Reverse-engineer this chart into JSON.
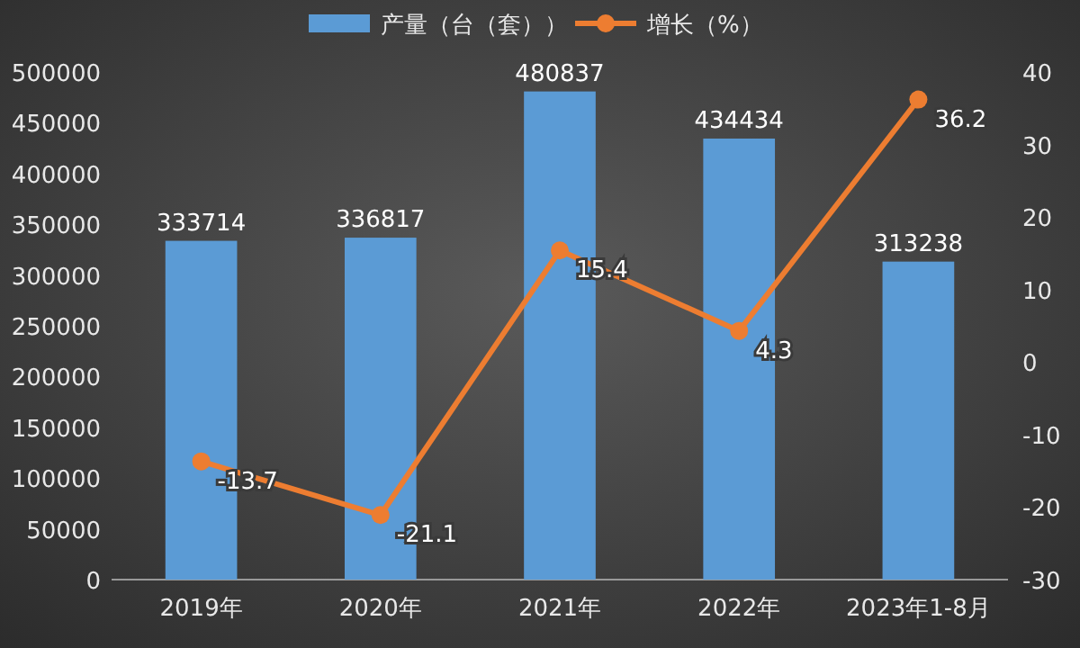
{
  "chart_data": {
    "type": "bar",
    "categories": [
      "2019年",
      "2020年",
      "2021年",
      "2022年",
      "2023年1-8月"
    ],
    "series": [
      {
        "name": "产量（台（套））",
        "type": "bar",
        "color": "#5b9bd5",
        "values": [
          333714,
          336817,
          480837,
          434434,
          313238
        ]
      },
      {
        "name": "增长（%）",
        "type": "line",
        "axis": "y2",
        "color": "#ed7d31",
        "values": [
          -13.7,
          -21.1,
          15.4,
          4.3,
          36.2
        ]
      }
    ],
    "ylim": [
      0,
      500000
    ],
    "yticks": [
      0,
      50000,
      100000,
      150000,
      200000,
      250000,
      300000,
      350000,
      400000,
      450000,
      500000
    ],
    "y2lim": [
      -30,
      40
    ],
    "y2ticks": [
      -30,
      -20,
      -10,
      0,
      10,
      20,
      30,
      40
    ],
    "grid": false,
    "legend": "top",
    "marker": "circle",
    "data_labels": true
  }
}
